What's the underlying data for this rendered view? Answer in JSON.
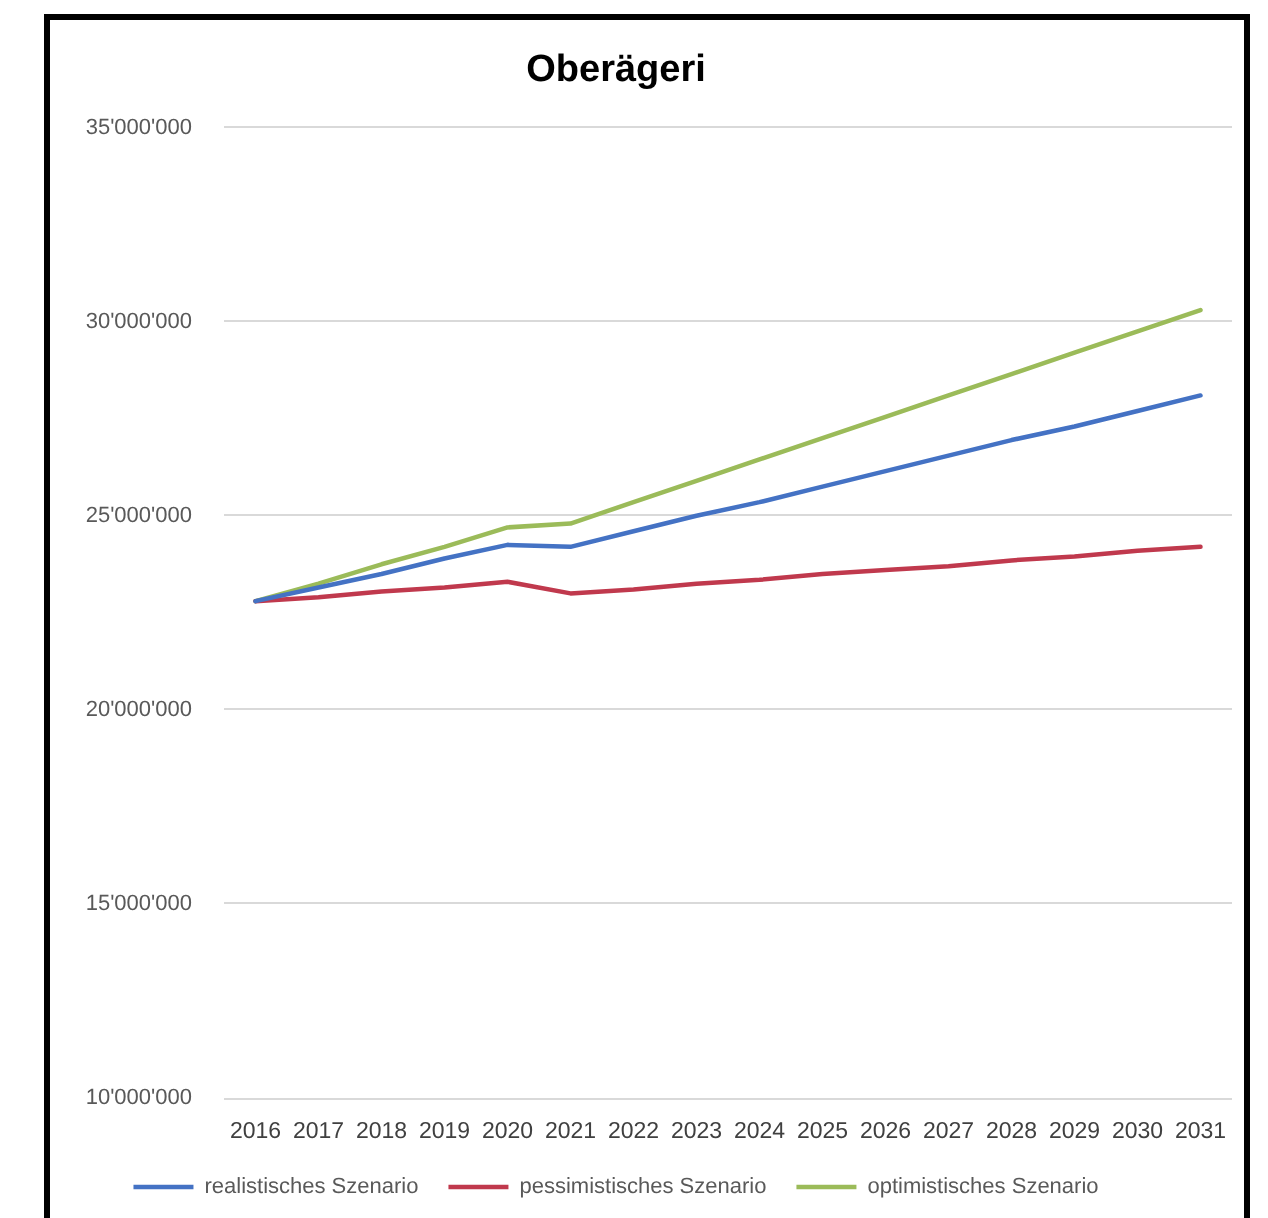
{
  "chart_data": {
    "type": "line",
    "title": "Oberägeri",
    "categories": [
      "2016",
      "2017",
      "2018",
      "2019",
      "2020",
      "2021",
      "2022",
      "2023",
      "2024",
      "2025",
      "2026",
      "2027",
      "2028",
      "2029",
      "2030",
      "2031"
    ],
    "series": [
      {
        "name": "realistisches Szenario",
        "color": "#4472c4",
        "values": [
          22800000,
          23150000,
          23500000,
          23900000,
          24250000,
          24200000,
          24600000,
          25000000,
          25350000,
          25750000,
          26150000,
          26550000,
          26950000,
          27300000,
          27700000,
          28100000
        ]
      },
      {
        "name": "pessimistisches Szenario",
        "color": "#c0394d",
        "values": [
          22800000,
          22900000,
          23050000,
          23150000,
          23300000,
          23000000,
          23100000,
          23250000,
          23350000,
          23500000,
          23600000,
          23700000,
          23850000,
          23950000,
          24100000,
          24200000
        ]
      },
      {
        "name": "optimistisches Szenario",
        "color": "#9bbb59",
        "values": [
          22800000,
          23250000,
          23750000,
          24200000,
          24700000,
          24800000,
          25350000,
          25900000,
          26450000,
          27000000,
          27550000,
          28100000,
          28650000,
          29200000,
          29750000,
          30300000
        ]
      }
    ],
    "ylim": [
      10000000,
      35000000
    ],
    "yticks": [
      {
        "value": 10000000,
        "label": "10'000'000"
      },
      {
        "value": 15000000,
        "label": "15'000'000"
      },
      {
        "value": 20000000,
        "label": "20'000'000"
      },
      {
        "value": 25000000,
        "label": "25'000'000"
      },
      {
        "value": 30000000,
        "label": "30'000'000"
      },
      {
        "value": 35000000,
        "label": "35'000'000"
      }
    ],
    "grid": "y",
    "legend": "bottom",
    "marker": "none",
    "line_style": "solid"
  }
}
